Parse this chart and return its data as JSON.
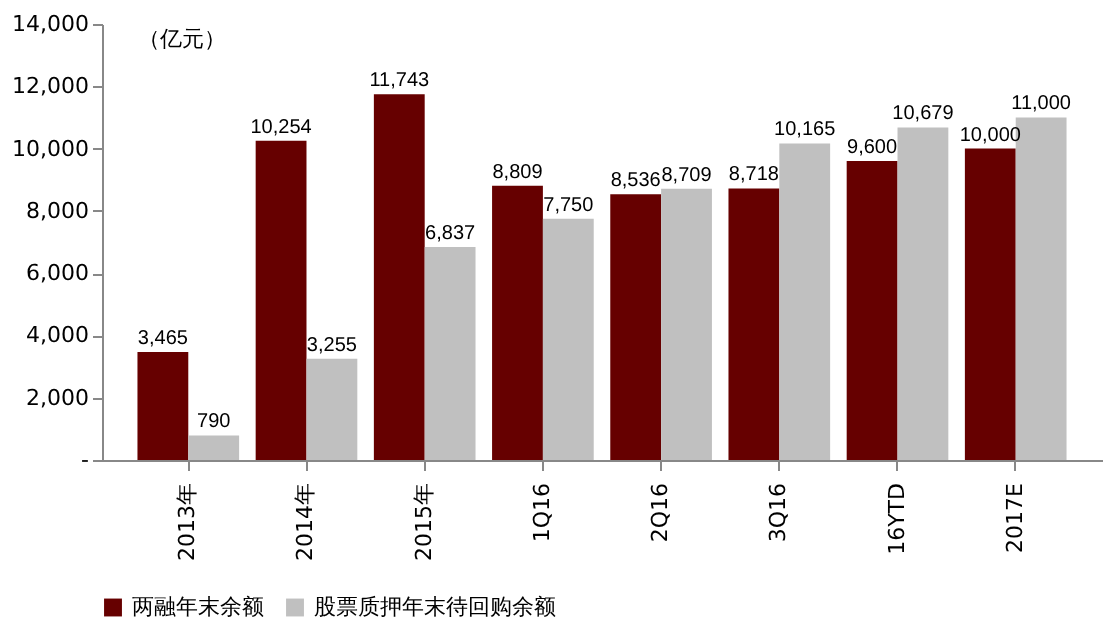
{
  "chart_data": {
    "type": "bar",
    "annotations": [
      "（亿元）"
    ],
    "categories": [
      "2013年",
      "2014年",
      "2015年",
      "1Q16",
      "2Q16",
      "3Q16",
      "16YTD",
      "2017E"
    ],
    "series": [
      {
        "name": "两融年末余额",
        "color": "#660000",
        "values": [
          3465,
          10254,
          11743,
          8809,
          8536,
          8718,
          9600,
          10000
        ],
        "value_labels": [
          "3,465",
          "10,254",
          "11,743",
          "8,809",
          "8,536",
          "8,718",
          "9,600",
          "10,000"
        ]
      },
      {
        "name": "股票质押年末待回购余额",
        "color": "#c0c0c0",
        "values": [
          790,
          3255,
          6837,
          7750,
          8709,
          10165,
          10679,
          11000
        ],
        "value_labels": [
          "790",
          "3,255",
          "6,837",
          "7,750",
          "8,709",
          "10,165",
          "10,679",
          "11,000"
        ]
      }
    ],
    "ylim": [
      0,
      14000
    ],
    "yticks": [
      {
        "value": 0,
        "label": "-"
      },
      {
        "value": 2000,
        "label": "2,000"
      },
      {
        "value": 4000,
        "label": "4,000"
      },
      {
        "value": 6000,
        "label": "6,000"
      },
      {
        "value": 8000,
        "label": "8,000"
      },
      {
        "value": 10000,
        "label": "10,000"
      },
      {
        "value": 12000,
        "label": "12,000"
      },
      {
        "value": 14000,
        "label": "14,000"
      }
    ],
    "grid": false,
    "legend": "bottom"
  }
}
